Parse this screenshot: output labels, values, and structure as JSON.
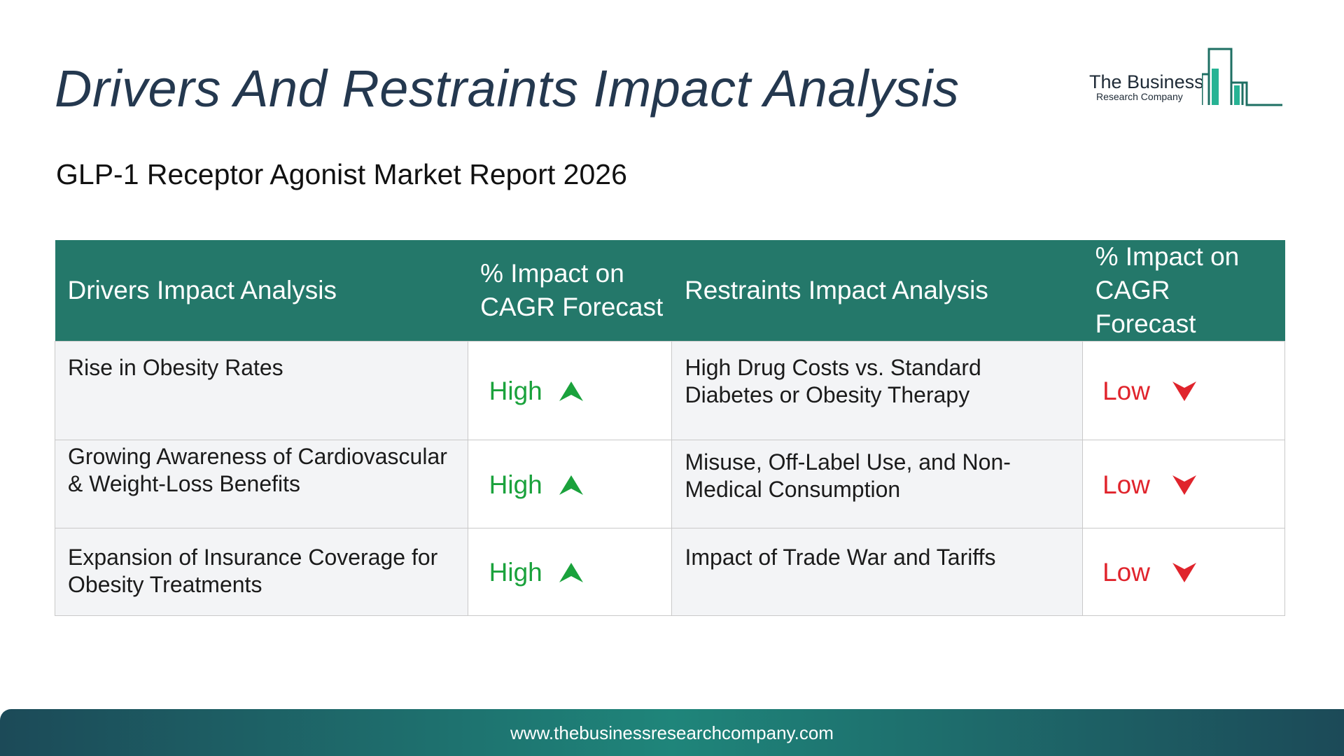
{
  "page": {
    "title": "Drivers And Restraints Impact Analysis",
    "subtitle": "GLP-1 Receptor Agonist Market Report 2026"
  },
  "logo": {
    "name": "The Business",
    "tagline": "Research Company"
  },
  "table": {
    "headers": {
      "drivers": "Drivers Impact Analysis",
      "driver_impact": "% Impact on CAGR Forecast",
      "restraints": "Restraints Impact Analysis",
      "restraint_impact": "% Impact on CAGR Forecast"
    },
    "rows": [
      {
        "driver": "Rise in Obesity Rates",
        "driver_impact": "High",
        "restraint": "High Drug Costs vs. Standard Diabetes or Obesity Therapy",
        "restraint_impact": "Low"
      },
      {
        "driver": "Growing Awareness of Cardiovascular & Weight-Loss Benefits",
        "driver_impact": "High",
        "restraint": "Misuse, Off-Label Use, and Non-Medical Consumption",
        "restraint_impact": "Low"
      },
      {
        "driver": "Expansion of Insurance Coverage for Obesity Treatments",
        "driver_impact": "High",
        "restraint": "Impact of Trade War and Tariffs",
        "restraint_impact": "Low"
      }
    ]
  },
  "icons": {
    "high": "arrow-up-icon",
    "low": "arrow-down-icon"
  },
  "colors": {
    "header_bg": "#24786a",
    "high": "#1aa23c",
    "low": "#e0242c",
    "title": "#24384f"
  },
  "footer": {
    "url": "www.thebusinessresearchcompany.com"
  }
}
